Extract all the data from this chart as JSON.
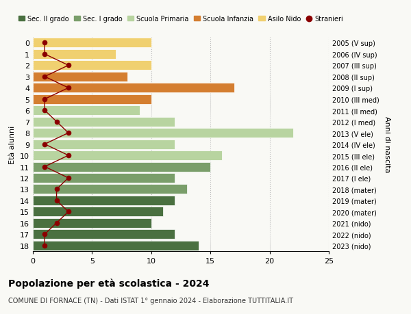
{
  "ages": [
    18,
    17,
    16,
    15,
    14,
    13,
    12,
    11,
    10,
    9,
    8,
    7,
    6,
    5,
    4,
    3,
    2,
    1,
    0
  ],
  "years": [
    "2005 (V sup)",
    "2006 (IV sup)",
    "2007 (III sup)",
    "2008 (II sup)",
    "2009 (I sup)",
    "2010 (III med)",
    "2011 (II med)",
    "2012 (I med)",
    "2013 (V ele)",
    "2014 (IV ele)",
    "2015 (III ele)",
    "2016 (II ele)",
    "2017 (I ele)",
    "2018 (mater)",
    "2019 (mater)",
    "2020 (mater)",
    "2021 (nido)",
    "2022 (nido)",
    "2023 (nido)"
  ],
  "values": [
    14,
    12,
    10,
    11,
    12,
    13,
    12,
    15,
    16,
    12,
    22,
    12,
    9,
    10,
    17,
    8,
    10,
    7,
    10
  ],
  "stranieri": [
    1,
    1,
    2,
    3,
    2,
    2,
    3,
    1,
    3,
    1,
    3,
    2,
    1,
    1,
    3,
    1,
    3,
    1,
    1
  ],
  "colors": {
    "sec2": "#4a7040",
    "sec1": "#7a9e6a",
    "primaria": "#b8d4a0",
    "infanzia": "#d47e30",
    "nido": "#f0d070",
    "stranieri": "#8b0000"
  },
  "bar_colors": [
    "#4a7040",
    "#4a7040",
    "#4a7040",
    "#4a7040",
    "#4a7040",
    "#7a9e6a",
    "#7a9e6a",
    "#7a9e6a",
    "#b8d4a0",
    "#b8d4a0",
    "#b8d4a0",
    "#b8d4a0",
    "#b8d4a0",
    "#d47e30",
    "#d47e30",
    "#d47e30",
    "#f0d070",
    "#f0d070",
    "#f0d070"
  ],
  "title": "Popolazione per età scolastica - 2024",
  "subtitle": "COMUNE DI FORNACE (TN) - Dati ISTAT 1° gennaio 2024 - Elaborazione TUTTITALIA.IT",
  "xlabel_left": "Età alunni",
  "xlabel_right": "Anni di nascita",
  "legend_labels": [
    "Sec. II grado",
    "Sec. I grado",
    "Scuola Primaria",
    "Scuola Infanzia",
    "Asilo Nido",
    "Stranieri"
  ],
  "legend_colors": [
    "#4a7040",
    "#7a9e6a",
    "#b8d4a0",
    "#d47e30",
    "#f0d070",
    "#8b0000"
  ],
  "xlim": [
    0,
    25
  ],
  "xticks": [
    0,
    5,
    10,
    15,
    20,
    25
  ],
  "background_color": "#f9f9f5"
}
